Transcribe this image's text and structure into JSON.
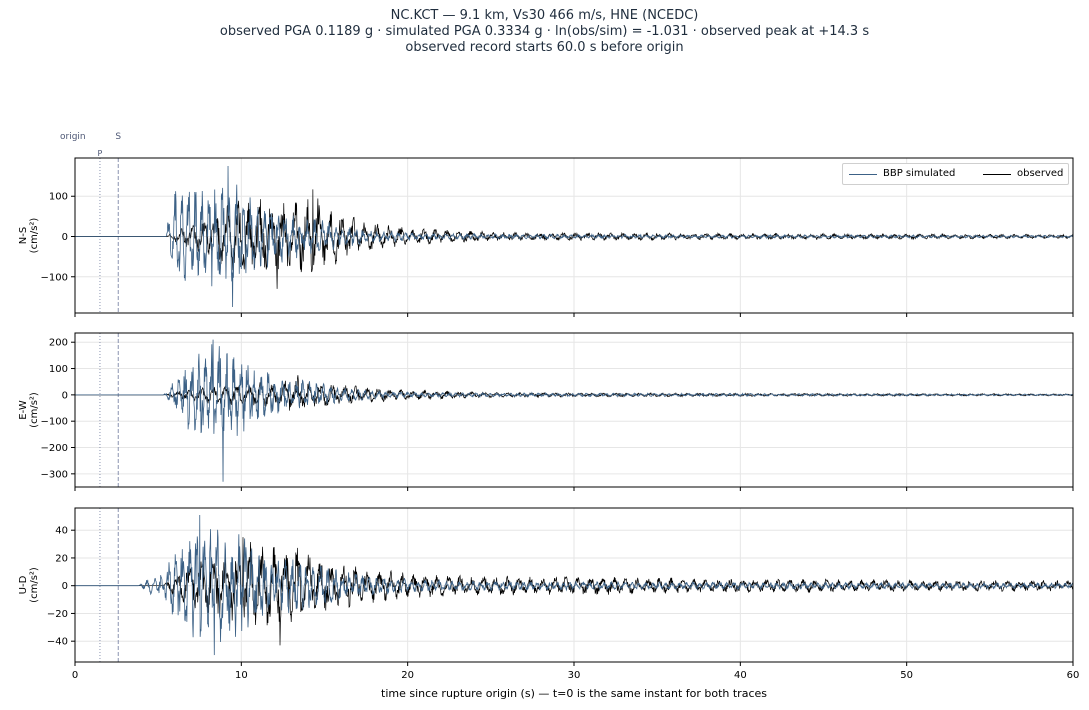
{
  "figure": {
    "title_line1": "NC.KCT  —  9.1 km, Vs30 466 m/s, HNE (NCEDC)",
    "title_line2": "observed PGA 0.1189 g   ·   simulated PGA 0.3334 g   ·   ln(obs/sim) = -1.031   ·   observed peak at +14.3 s",
    "title_line3": "observed record starts 60.0 s before origin",
    "marker_origin_label": "origin",
    "marker_p_label": "P",
    "marker_s_label": "S"
  },
  "legend": {
    "sim_label": "BBP simulated",
    "obs_label": "observed"
  },
  "colors": {
    "simulated": "#3c6186",
    "observed": "#000000",
    "marker": "#8a93b0",
    "grid": "#e6e6e6"
  },
  "chart_data": {
    "type": "line",
    "xlabel": "time since rupture origin (s)   —   t=0 is the same instant for both traces",
    "xlim": [
      0,
      60
    ],
    "xticks": [
      0,
      10,
      20,
      30,
      40,
      50,
      60
    ],
    "markers": {
      "p_time": 1.5,
      "s_time": 2.6
    },
    "grid": true,
    "legend_position": "upper right",
    "series_names": [
      "BBP simulated",
      "observed"
    ],
    "panels": [
      {
        "name": "N-S",
        "ylabel": "N-S\n(cm/s²)",
        "ylim": [
          -190,
          195
        ],
        "yticks": [
          -100,
          0,
          100
        ],
        "simulated": {
          "onset": 5.5,
          "peak_time": 9.2,
          "peak_value": 175,
          "min_value": -175,
          "envelope": [
            [
              5.4,
              0
            ],
            [
              6.0,
              130
            ],
            [
              7.0,
              140
            ],
            [
              8.5,
              150
            ],
            [
              9.5,
              140
            ],
            [
              11,
              100
            ],
            [
              12.5,
              70
            ],
            [
              14,
              50
            ],
            [
              16,
              30
            ],
            [
              18,
              15
            ],
            [
              22,
              8
            ],
            [
              30,
              5
            ],
            [
              60,
              3
            ]
          ]
        },
        "observed": {
          "onset": 5.5,
          "peak_time": 14.3,
          "peak_value": 117,
          "min_value": -130,
          "envelope": [
            [
              5.4,
              0
            ],
            [
              6.5,
              25
            ],
            [
              8,
              50
            ],
            [
              9,
              80
            ],
            [
              10,
              95
            ],
            [
              11,
              100
            ],
            [
              12,
              95
            ],
            [
              13,
              90
            ],
            [
              14.3,
              110
            ],
            [
              15,
              90
            ],
            [
              16,
              60
            ],
            [
              17,
              45
            ],
            [
              18,
              35
            ],
            [
              20,
              22
            ],
            [
              25,
              12
            ],
            [
              30,
              10
            ],
            [
              40,
              8
            ],
            [
              60,
              5
            ]
          ]
        }
      },
      {
        "name": "E-W",
        "ylabel": "E-W\n(cm/s²)",
        "ylim": [
          -350,
          235
        ],
        "yticks": [
          -300,
          -200,
          -100,
          0,
          100,
          200
        ],
        "simulated": {
          "onset": 5.3,
          "peak_time": 8.3,
          "peak_value": 210,
          "min_value": -330,
          "envelope": [
            [
              5.3,
              0
            ],
            [
              6.0,
              60
            ],
            [
              7.0,
              150
            ],
            [
              8.0,
              210
            ],
            [
              8.6,
              230
            ],
            [
              9.5,
              170
            ],
            [
              11,
              110
            ],
            [
              12.5,
              70
            ],
            [
              14,
              55
            ],
            [
              16,
              30
            ],
            [
              18,
              15
            ],
            [
              22,
              8
            ],
            [
              60,
              3
            ]
          ]
        },
        "observed": {
          "onset": 5.3,
          "peak_time": 13.4,
          "peak_value": 75,
          "min_value": -60,
          "envelope": [
            [
              5.3,
              0
            ],
            [
              6.5,
              20
            ],
            [
              8,
              35
            ],
            [
              9,
              40
            ],
            [
              10,
              40
            ],
            [
              11,
              50
            ],
            [
              12,
              55
            ],
            [
              13.4,
              70
            ],
            [
              14,
              55
            ],
            [
              16,
              40
            ],
            [
              18,
              30
            ],
            [
              20,
              20
            ],
            [
              25,
              10
            ],
            [
              30,
              8
            ],
            [
              40,
              6
            ],
            [
              60,
              4
            ]
          ]
        }
      },
      {
        "name": "U-D",
        "ylabel": "U-D\n(cm/s²)",
        "ylim": [
          -55,
          56
        ],
        "yticks": [
          -40,
          -20,
          0,
          20,
          40
        ],
        "simulated": {
          "onset": 3.8,
          "peak_time": 7.5,
          "peak_value": 51,
          "min_value": -50,
          "envelope": [
            [
              3.8,
              0
            ],
            [
              4.5,
              6
            ],
            [
              5.3,
              10
            ],
            [
              6.2,
              30
            ],
            [
              7.5,
              45
            ],
            [
              9.5,
              45
            ],
            [
              11,
              30
            ],
            [
              12.5,
              22
            ],
            [
              14,
              18
            ],
            [
              16,
              12
            ],
            [
              18,
              7
            ],
            [
              22,
              4
            ],
            [
              30,
              3
            ],
            [
              60,
              2
            ]
          ]
        },
        "observed": {
          "onset": 5.3,
          "peak_time": 10.1,
          "peak_value": 35,
          "min_value": -43,
          "envelope": [
            [
              5.3,
              0
            ],
            [
              6.5,
              15
            ],
            [
              8,
              22
            ],
            [
              9.5,
              26
            ],
            [
              10.5,
              32
            ],
            [
              12,
              30
            ],
            [
              13.5,
              30
            ],
            [
              15,
              20
            ],
            [
              17,
              14
            ],
            [
              20,
              9
            ],
            [
              25,
              7
            ],
            [
              30,
              7
            ],
            [
              40,
              5
            ],
            [
              60,
              4
            ]
          ]
        }
      }
    ]
  }
}
